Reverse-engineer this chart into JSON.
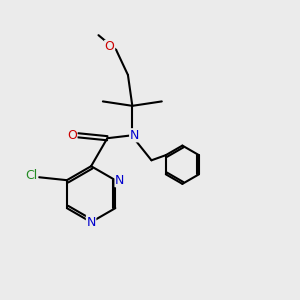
{
  "bg_color": "#ebebeb",
  "atom_colors": {
    "C": "#000000",
    "N": "#0000cd",
    "O": "#cc0000",
    "Cl": "#228b22"
  },
  "bond_color": "#000000",
  "bond_width": 1.5,
  "figsize": [
    3.0,
    3.0
  ],
  "dpi": 100
}
